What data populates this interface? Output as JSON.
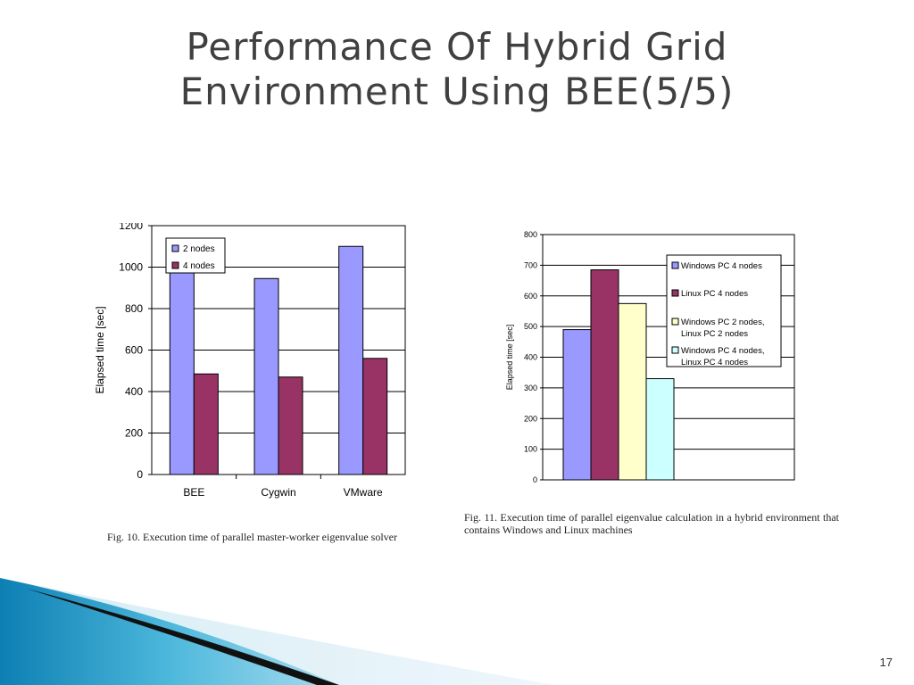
{
  "slide": {
    "title_line1": "Performance Of Hybrid Grid",
    "title_line2": "Environment Using BEE(5/5)",
    "page_number": "17"
  },
  "colors": {
    "purple": "#9999ff",
    "maroon": "#993366",
    "yellow": "#ffffcc",
    "cyan": "#ccffff",
    "title": "#404040",
    "swoosh_blue": "#1a8fc0"
  },
  "chart_data": [
    {
      "type": "bar",
      "categories": [
        "BEE",
        "Cygwin",
        "VMware"
      ],
      "series": [
        {
          "name": "2 nodes",
          "values": [
            975,
            945,
            1100
          ],
          "color": "#9999ff"
        },
        {
          "name": "4 nodes",
          "values": [
            485,
            470,
            560
          ],
          "color": "#993366"
        }
      ],
      "ylabel": "Elapsed time [sec]",
      "ylim": [
        0,
        1200
      ],
      "yticks": [
        0,
        200,
        400,
        600,
        800,
        1000,
        1200
      ],
      "grid": true,
      "legend": "top-left",
      "caption": "Fig. 10.    Execution time of parallel master-worker eigenvalue solver"
    },
    {
      "type": "bar",
      "categories": [
        ""
      ],
      "series": [
        {
          "name": "Windows PC 4 nodes",
          "values": [
            490
          ],
          "color": "#9999ff"
        },
        {
          "name": "Linux PC 4 nodes",
          "values": [
            685
          ],
          "color": "#993366"
        },
        {
          "name": "Windows PC 2 nodes, Linux PC 2 nodes",
          "values": [
            575
          ],
          "color": "#ffffcc"
        },
        {
          "name": "Windows PC 4 nodes, Linux PC 4 nodes",
          "values": [
            330
          ],
          "color": "#ccffff"
        }
      ],
      "ylabel": "Elapsed time [sec]",
      "ylim": [
        0,
        800
      ],
      "yticks": [
        0,
        100,
        200,
        300,
        400,
        500,
        600,
        700,
        800
      ],
      "grid": true,
      "legend": "right",
      "caption": "Fig. 11.    Execution time of parallel eigenvalue calculation in a hybrid environment that contains Windows and Linux machines"
    }
  ]
}
